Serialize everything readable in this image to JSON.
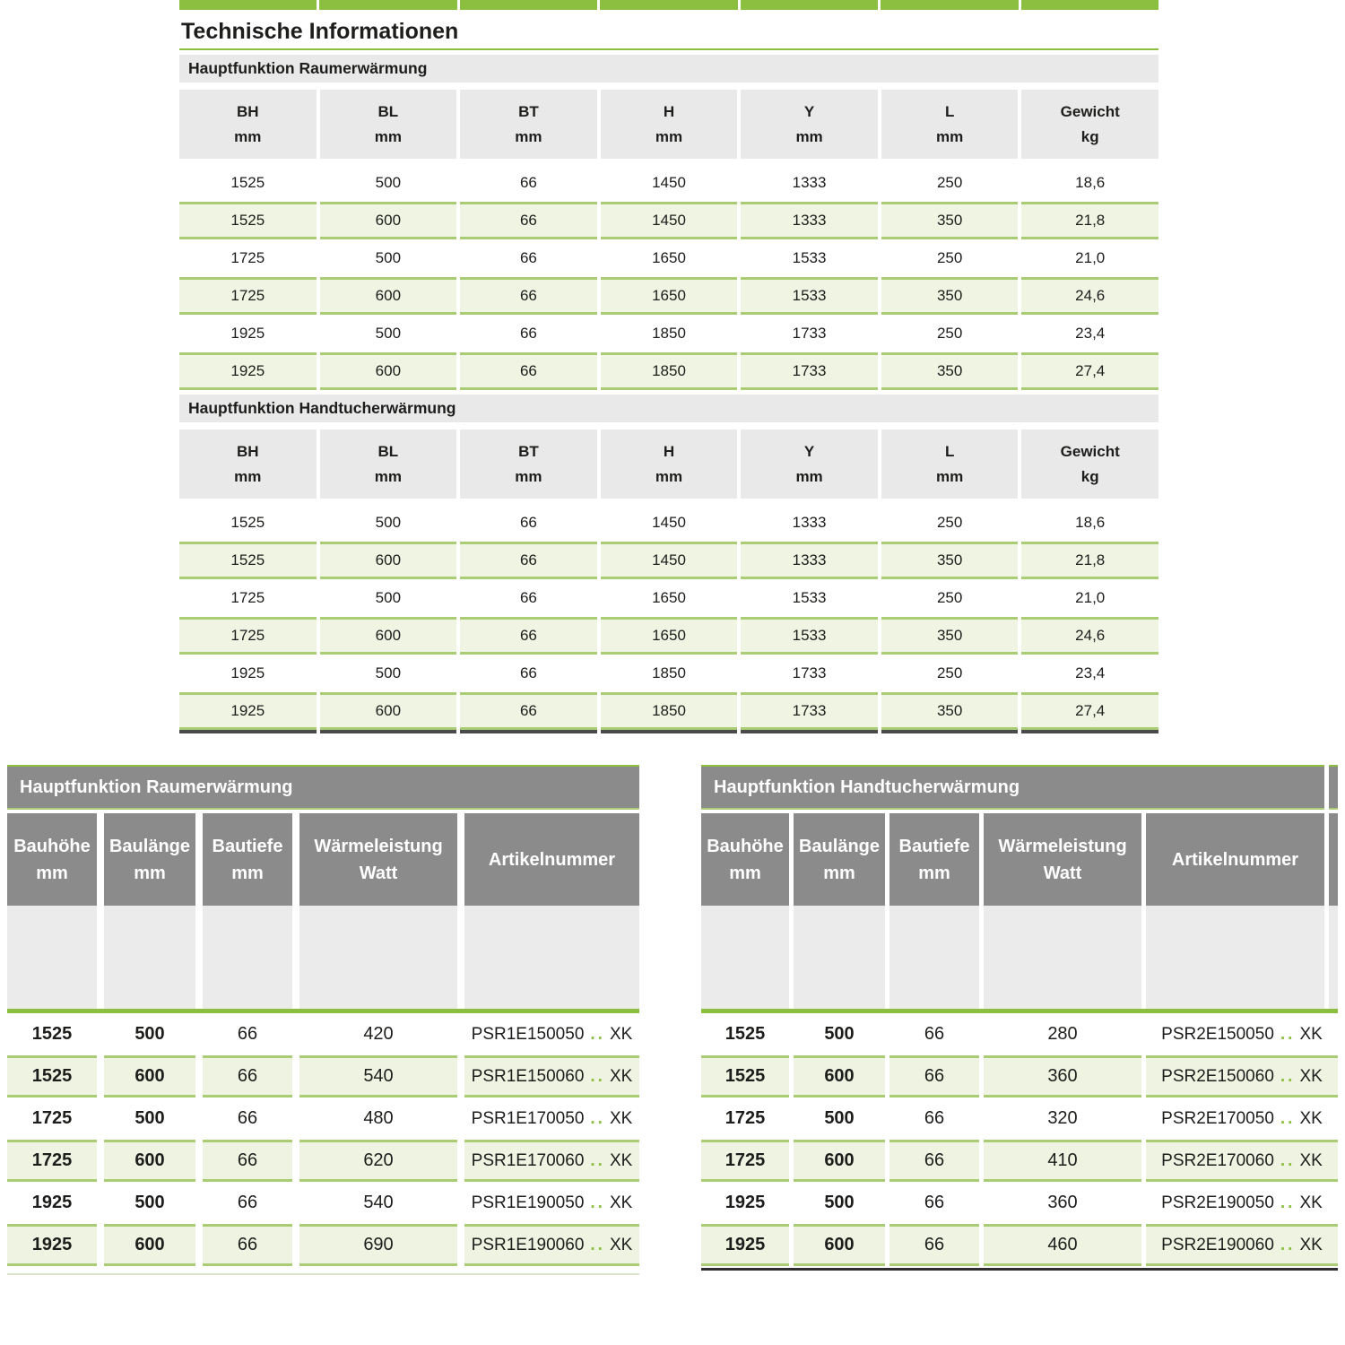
{
  "colors": {
    "accent_green": "#8cbe3f",
    "row_border_green": "#a9cc74",
    "row_fill_green": "#f0f4e3",
    "band_gray": "#e9e9e9",
    "header_dark_gray": "#8b8b8b",
    "spacer_gray": "#ebebeb",
    "dark_border": "#4a4a4a",
    "text": "#1d1d1b"
  },
  "top": {
    "title": "Technische Informationen",
    "col_headers": [
      {
        "l1": "BH",
        "l2": "mm"
      },
      {
        "l1": "BL",
        "l2": "mm"
      },
      {
        "l1": "BT",
        "l2": "mm"
      },
      {
        "l1": "H",
        "l2": "mm"
      },
      {
        "l1": "Y",
        "l2": "mm"
      },
      {
        "l1": "L",
        "l2": "mm"
      },
      {
        "l1": "Gewicht",
        "l2": "kg"
      }
    ],
    "sections": [
      {
        "label": "Hauptfunktion Raumerwärmung",
        "rows": [
          [
            "1525",
            "500",
            "66",
            "1450",
            "1333",
            "250",
            "18,6"
          ],
          [
            "1525",
            "600",
            "66",
            "1450",
            "1333",
            "350",
            "21,8"
          ],
          [
            "1725",
            "500",
            "66",
            "1650",
            "1533",
            "250",
            "21,0"
          ],
          [
            "1725",
            "600",
            "66",
            "1650",
            "1533",
            "350",
            "24,6"
          ],
          [
            "1925",
            "500",
            "66",
            "1850",
            "1733",
            "250",
            "23,4"
          ],
          [
            "1925",
            "600",
            "66",
            "1850",
            "1733",
            "350",
            "27,4"
          ]
        ]
      },
      {
        "label": "Hauptfunktion Handtucherwärmung",
        "rows": [
          [
            "1525",
            "500",
            "66",
            "1450",
            "1333",
            "250",
            "18,6"
          ],
          [
            "1525",
            "600",
            "66",
            "1450",
            "1333",
            "350",
            "21,8"
          ],
          [
            "1725",
            "500",
            "66",
            "1650",
            "1533",
            "250",
            "21,0"
          ],
          [
            "1725",
            "600",
            "66",
            "1650",
            "1533",
            "350",
            "24,6"
          ],
          [
            "1925",
            "500",
            "66",
            "1850",
            "1733",
            "250",
            "23,4"
          ],
          [
            "1925",
            "600",
            "66",
            "1850",
            "1733",
            "350",
            "27,4"
          ]
        ]
      }
    ]
  },
  "bottom": {
    "dots": "..",
    "col_headers": [
      {
        "l1": "Bauhöhe",
        "l2": "mm"
      },
      {
        "l1": "Baulänge",
        "l2": "mm"
      },
      {
        "l1": "Bautiefe",
        "l2": "mm"
      },
      {
        "l1": "Wärmeleistung",
        "l2": "Watt"
      },
      {
        "l1": "Artikelnummer",
        "l2": ""
      }
    ],
    "tables": [
      {
        "label": "Hauptfunktion Raumerwärmung",
        "rows": [
          {
            "bh": "1525",
            "bl": "500",
            "bt": "66",
            "watt": "420",
            "art": "PSR1E150050",
            "suffix": "XK"
          },
          {
            "bh": "1525",
            "bl": "600",
            "bt": "66",
            "watt": "540",
            "art": "PSR1E150060",
            "suffix": "XK"
          },
          {
            "bh": "1725",
            "bl": "500",
            "bt": "66",
            "watt": "480",
            "art": "PSR1E170050",
            "suffix": "XK"
          },
          {
            "bh": "1725",
            "bl": "600",
            "bt": "66",
            "watt": "620",
            "art": "PSR1E170060",
            "suffix": "XK"
          },
          {
            "bh": "1925",
            "bl": "500",
            "bt": "66",
            "watt": "540",
            "art": "PSR1E190050",
            "suffix": "XK"
          },
          {
            "bh": "1925",
            "bl": "600",
            "bt": "66",
            "watt": "690",
            "art": "PSR1E190060",
            "suffix": "XK"
          }
        ]
      },
      {
        "label": "Hauptfunktion Handtucherwärmung",
        "rows": [
          {
            "bh": "1525",
            "bl": "500",
            "bt": "66",
            "watt": "280",
            "art": "PSR2E150050",
            "suffix": "XK"
          },
          {
            "bh": "1525",
            "bl": "600",
            "bt": "66",
            "watt": "360",
            "art": "PSR2E150060",
            "suffix": "XK"
          },
          {
            "bh": "1725",
            "bl": "500",
            "bt": "66",
            "watt": "320",
            "art": "PSR2E170050",
            "suffix": "XK"
          },
          {
            "bh": "1725",
            "bl": "600",
            "bt": "66",
            "watt": "410",
            "art": "PSR2E170060",
            "suffix": "XK"
          },
          {
            "bh": "1925",
            "bl": "500",
            "bt": "66",
            "watt": "360",
            "art": "PSR2E190050",
            "suffix": "XK"
          },
          {
            "bh": "1925",
            "bl": "600",
            "bt": "66",
            "watt": "460",
            "art": "PSR2E190060",
            "suffix": "XK"
          }
        ]
      }
    ]
  }
}
